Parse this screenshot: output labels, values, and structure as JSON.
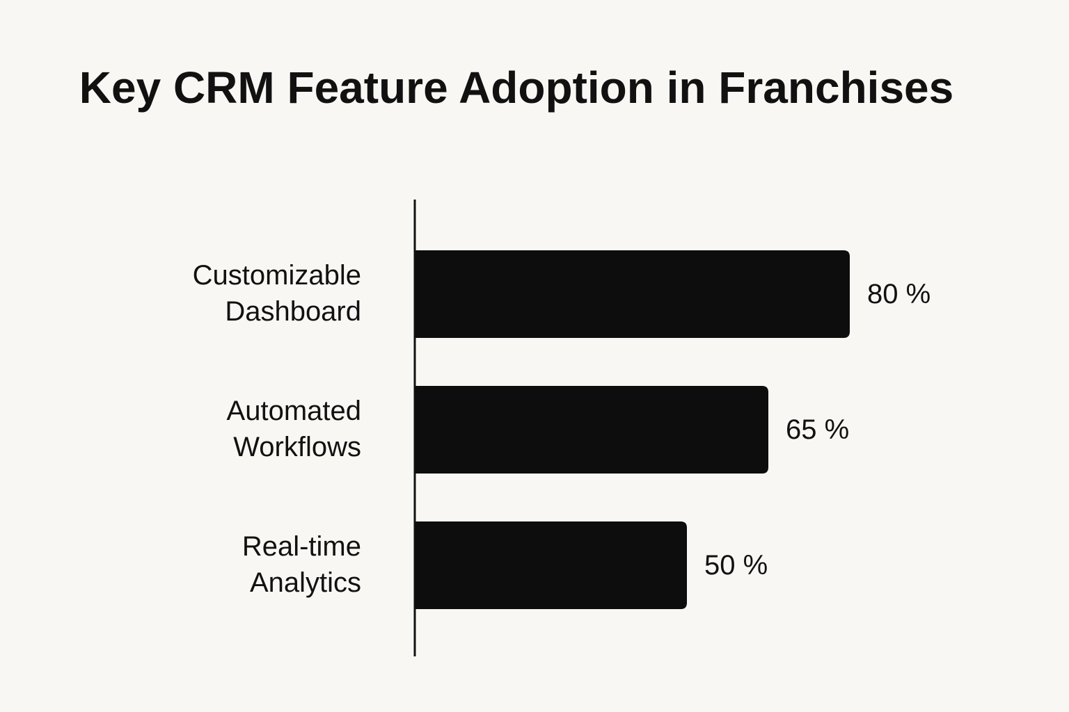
{
  "chart_data": {
    "type": "bar",
    "orientation": "horizontal",
    "title": "Key CRM Feature Adoption in Franchises",
    "categories": [
      "Customizable Dashboard",
      "Automated Workflows",
      "Real-time Analytics"
    ],
    "values": [
      80,
      65,
      50
    ],
    "value_labels": [
      "80 %",
      "65 %",
      "50 %"
    ],
    "xlabel": "",
    "ylabel": "",
    "xlim": [
      0,
      100
    ],
    "grid": false,
    "bar_color": "#0d0d0d"
  }
}
